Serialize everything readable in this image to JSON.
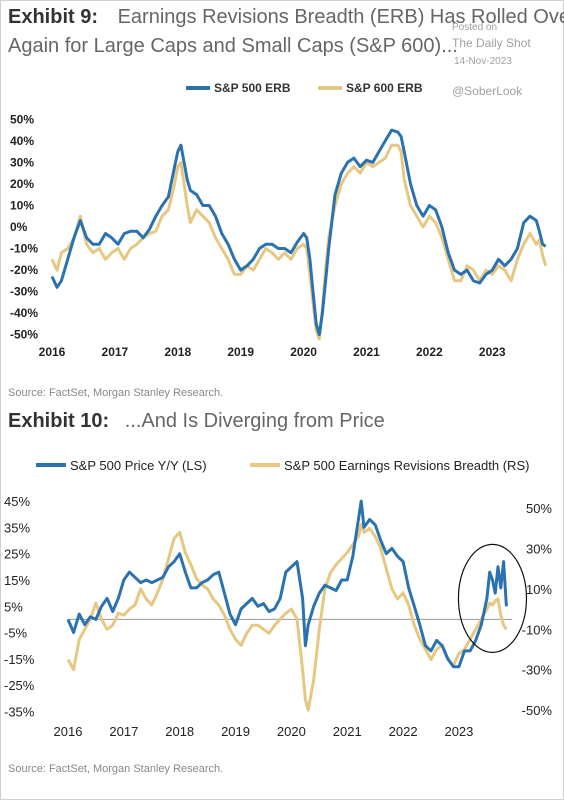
{
  "exhibit9": {
    "label": "Exhibit 9:",
    "title_line1": "Earnings Revisions Breadth (ERB) Has Rolled Over",
    "title_line2": "Again for Large Caps and Small Caps (S&P 600)...",
    "source": "Source: FactSet, Morgan Stanley Research."
  },
  "exhibit10": {
    "label": "Exhibit 10:",
    "title": "...And Is Diverging from Price",
    "source": "Source: FactSet, Morgan Stanley Research."
  },
  "watermark": {
    "posted_on": "Posted on",
    "site": "The Daily Shot",
    "date": "14-Nov-2023",
    "handle": "@SoberLook"
  },
  "colors": {
    "blue": "#2a72b0",
    "tan": "#e6c882",
    "zero_line": "#999999"
  },
  "chart_data": [
    {
      "type": "line",
      "title": "Earnings Revisions Breadth (ERB) Has Rolled Over Again for Large Caps and Small Caps (S&P 600)...",
      "xlim": [
        2016,
        2023.95
      ],
      "ylim": [
        -52,
        52
      ],
      "yticks": [
        50,
        40,
        30,
        20,
        10,
        0,
        -10,
        -20,
        -30,
        -40,
        -50
      ],
      "ytick_labels": [
        "50%",
        "40%",
        "30%",
        "20%",
        "10%",
        "0%",
        "-10%",
        "-20%",
        "-30%",
        "-40%",
        "-50%"
      ],
      "xticks": [
        2016,
        2017,
        2018,
        2019,
        2020,
        2021,
        2022,
        2023
      ],
      "xtick_labels": [
        "2016",
        "2017",
        "2018",
        "2019",
        "2020",
        "2021",
        "2022",
        "2023"
      ],
      "legend_position": "top-center",
      "series": [
        {
          "name": "S&P 500 ERB",
          "color": "#2a72b0",
          "x": [
            2016.0,
            2016.08,
            2016.15,
            2016.25,
            2016.35,
            2016.45,
            2016.55,
            2016.65,
            2016.75,
            2016.85,
            2016.95,
            2017.05,
            2017.15,
            2017.25,
            2017.35,
            2017.45,
            2017.55,
            2017.65,
            2017.75,
            2017.85,
            2017.95,
            2018.0,
            2018.05,
            2018.1,
            2018.15,
            2018.2,
            2018.3,
            2018.4,
            2018.5,
            2018.6,
            2018.7,
            2018.8,
            2018.9,
            2019.0,
            2019.1,
            2019.2,
            2019.3,
            2019.4,
            2019.5,
            2019.6,
            2019.7,
            2019.8,
            2019.9,
            2020.0,
            2020.05,
            2020.1,
            2020.15,
            2020.2,
            2020.25,
            2020.3,
            2020.35,
            2020.4,
            2020.5,
            2020.6,
            2020.7,
            2020.8,
            2020.9,
            2021.0,
            2021.1,
            2021.2,
            2021.3,
            2021.4,
            2021.5,
            2021.55,
            2021.6,
            2021.7,
            2021.8,
            2021.9,
            2022.0,
            2022.1,
            2022.2,
            2022.3,
            2022.4,
            2022.5,
            2022.6,
            2022.7,
            2022.8,
            2022.9,
            2023.0,
            2023.1,
            2023.2,
            2023.3,
            2023.4,
            2023.5,
            2023.6,
            2023.7,
            2023.75,
            2023.8,
            2023.85
          ],
          "values": [
            -23,
            -28,
            -25,
            -15,
            -5,
            3,
            -5,
            -8,
            -8,
            -3,
            -5,
            -8,
            -3,
            -2,
            -2,
            -5,
            -1,
            5,
            10,
            14,
            28,
            35,
            38,
            30,
            22,
            17,
            15,
            10,
            10,
            5,
            -3,
            -8,
            -15,
            -20,
            -18,
            -15,
            -10,
            -8,
            -8,
            -10,
            -10,
            -12,
            -7,
            -3,
            -5,
            -15,
            -30,
            -45,
            -50,
            -40,
            -25,
            -10,
            15,
            25,
            30,
            32,
            28,
            31,
            30,
            35,
            40,
            45,
            44,
            42,
            35,
            20,
            10,
            5,
            10,
            8,
            0,
            -12,
            -20,
            -22,
            -20,
            -25,
            -26,
            -22,
            -20,
            -15,
            -18,
            -15,
            -10,
            2,
            5,
            3,
            -2,
            -8,
            -9
          ]
        },
        {
          "name": "S&P 600 ERB",
          "color": "#e6c882",
          "x": [
            2016.0,
            2016.08,
            2016.15,
            2016.25,
            2016.35,
            2016.45,
            2016.55,
            2016.65,
            2016.75,
            2016.85,
            2016.95,
            2017.05,
            2017.15,
            2017.25,
            2017.35,
            2017.45,
            2017.55,
            2017.65,
            2017.75,
            2017.85,
            2017.95,
            2018.0,
            2018.05,
            2018.1,
            2018.15,
            2018.2,
            2018.3,
            2018.4,
            2018.5,
            2018.6,
            2018.7,
            2018.8,
            2018.9,
            2019.0,
            2019.1,
            2019.2,
            2019.3,
            2019.4,
            2019.5,
            2019.6,
            2019.7,
            2019.8,
            2019.9,
            2020.0,
            2020.05,
            2020.1,
            2020.15,
            2020.2,
            2020.25,
            2020.3,
            2020.35,
            2020.4,
            2020.5,
            2020.6,
            2020.7,
            2020.8,
            2020.9,
            2021.0,
            2021.1,
            2021.2,
            2021.3,
            2021.4,
            2021.5,
            2021.55,
            2021.6,
            2021.7,
            2021.8,
            2021.9,
            2022.0,
            2022.1,
            2022.2,
            2022.3,
            2022.4,
            2022.5,
            2022.6,
            2022.7,
            2022.8,
            2022.9,
            2023.0,
            2023.1,
            2023.2,
            2023.3,
            2023.4,
            2023.5,
            2023.6,
            2023.7,
            2023.75,
            2023.8,
            2023.85
          ],
          "values": [
            -15,
            -20,
            -12,
            -10,
            -5,
            5,
            -8,
            -12,
            -10,
            -15,
            -12,
            -10,
            -15,
            -10,
            -8,
            -5,
            -3,
            -2,
            5,
            8,
            20,
            28,
            30,
            20,
            10,
            2,
            8,
            5,
            2,
            -5,
            -10,
            -15,
            -22,
            -22,
            -18,
            -20,
            -15,
            -10,
            -12,
            -15,
            -12,
            -15,
            -10,
            -8,
            -10,
            -22,
            -35,
            -48,
            -52,
            -38,
            -20,
            -5,
            10,
            20,
            25,
            28,
            25,
            30,
            28,
            30,
            32,
            38,
            38,
            35,
            22,
            10,
            5,
            0,
            5,
            2,
            -5,
            -15,
            -25,
            -25,
            -18,
            -20,
            -25,
            -20,
            -22,
            -18,
            -20,
            -25,
            -15,
            -8,
            -3,
            -8,
            -6,
            -13,
            -18
          ]
        }
      ]
    },
    {
      "type": "line",
      "title": "...And Is Diverging from Price",
      "xlim": [
        2016,
        2023.95
      ],
      "y_left_lim": [
        -36,
        50
      ],
      "y_right_lim": [
        -52,
        60
      ],
      "yticks_left": [
        45,
        35,
        25,
        15,
        5,
        -5,
        -15,
        -25,
        -35
      ],
      "ytick_labels_left": [
        "45%",
        "35%",
        "25%",
        "15%",
        "5%",
        "-5%",
        "-15%",
        "-25%",
        "-35%"
      ],
      "yticks_right": [
        50,
        30,
        10,
        -10,
        -30,
        -50
      ],
      "ytick_labels_right": [
        "50%",
        "30%",
        "10%",
        "-10%",
        "-30%",
        "-50%"
      ],
      "xticks": [
        2016,
        2017,
        2018,
        2019,
        2020,
        2021,
        2022,
        2023
      ],
      "xtick_labels": [
        "2016",
        "2017",
        "2018",
        "2019",
        "2020",
        "2021",
        "2022",
        "2023"
      ],
      "legend_position": "top",
      "annotation": "circle highlighting 2023 divergence",
      "series": [
        {
          "name": "S&P 500 Price Y/Y (LS)",
          "color": "#2a72b0",
          "axis": "left",
          "x": [
            2016.0,
            2016.1,
            2016.2,
            2016.3,
            2016.4,
            2016.5,
            2016.6,
            2016.7,
            2016.8,
            2016.9,
            2017.0,
            2017.1,
            2017.2,
            2017.3,
            2017.4,
            2017.5,
            2017.6,
            2017.7,
            2017.8,
            2017.9,
            2018.0,
            2018.1,
            2018.2,
            2018.3,
            2018.4,
            2018.5,
            2018.6,
            2018.7,
            2018.8,
            2018.9,
            2019.0,
            2019.1,
            2019.2,
            2019.3,
            2019.4,
            2019.5,
            2019.6,
            2019.7,
            2019.8,
            2019.9,
            2020.0,
            2020.1,
            2020.2,
            2020.25,
            2020.3,
            2020.4,
            2020.5,
            2020.6,
            2020.7,
            2020.8,
            2020.9,
            2021.0,
            2021.1,
            2021.2,
            2021.25,
            2021.3,
            2021.4,
            2021.5,
            2021.6,
            2021.7,
            2021.8,
            2021.9,
            2022.0,
            2022.1,
            2022.2,
            2022.3,
            2022.4,
            2022.5,
            2022.6,
            2022.7,
            2022.8,
            2022.9,
            2023.0,
            2023.1,
            2023.2,
            2023.3,
            2023.4,
            2023.5,
            2023.55,
            2023.6,
            2023.65,
            2023.7,
            2023.75,
            2023.8,
            2023.85
          ],
          "values": [
            0,
            -5,
            2,
            -2,
            1,
            0,
            5,
            8,
            3,
            8,
            15,
            18,
            16,
            14,
            15,
            14,
            15,
            16,
            20,
            22,
            25,
            18,
            12,
            12,
            14,
            15,
            17,
            18,
            10,
            2,
            -2,
            4,
            6,
            8,
            5,
            6,
            3,
            4,
            8,
            18,
            20,
            22,
            8,
            -10,
            -2,
            5,
            10,
            13,
            12,
            11,
            15,
            15,
            24,
            38,
            45,
            35,
            38,
            36,
            30,
            25,
            27,
            24,
            22,
            12,
            5,
            -2,
            -10,
            -12,
            -8,
            -10,
            -15,
            -18,
            -18,
            -12,
            -12,
            -8,
            -2,
            8,
            18,
            15,
            10,
            20,
            12,
            22,
            5
          ]
        },
        {
          "name": "S&P 500 Earnings Revisions Breadth (RS)",
          "color": "#e6c882",
          "axis": "right",
          "x": [
            2016.0,
            2016.1,
            2016.2,
            2016.3,
            2016.4,
            2016.5,
            2016.6,
            2016.7,
            2016.8,
            2016.9,
            2017.0,
            2017.1,
            2017.2,
            2017.3,
            2017.4,
            2017.5,
            2017.6,
            2017.7,
            2017.8,
            2017.9,
            2018.0,
            2018.1,
            2018.2,
            2018.3,
            2018.4,
            2018.5,
            2018.6,
            2018.7,
            2018.8,
            2018.9,
            2019.0,
            2019.1,
            2019.2,
            2019.3,
            2019.4,
            2019.5,
            2019.6,
            2019.7,
            2019.8,
            2019.9,
            2020.0,
            2020.1,
            2020.2,
            2020.25,
            2020.3,
            2020.4,
            2020.5,
            2020.6,
            2020.7,
            2020.8,
            2020.9,
            2021.0,
            2021.1,
            2021.2,
            2021.25,
            2021.3,
            2021.4,
            2021.5,
            2021.6,
            2021.7,
            2021.8,
            2021.9,
            2022.0,
            2022.1,
            2022.2,
            2022.3,
            2022.4,
            2022.5,
            2022.6,
            2022.7,
            2022.8,
            2022.9,
            2023.0,
            2023.1,
            2023.2,
            2023.3,
            2023.4,
            2023.5,
            2023.55,
            2023.6,
            2023.65,
            2023.7,
            2023.75,
            2023.8,
            2023.85
          ],
          "values": [
            -25,
            -30,
            -15,
            -10,
            -5,
            3,
            -5,
            -10,
            -8,
            -2,
            -3,
            0,
            2,
            10,
            5,
            2,
            8,
            15,
            25,
            35,
            38,
            28,
            22,
            15,
            12,
            10,
            5,
            2,
            -3,
            -10,
            -15,
            -18,
            -12,
            -8,
            -8,
            -10,
            -12,
            -8,
            -5,
            -2,
            0,
            -5,
            -30,
            -45,
            -50,
            -35,
            -10,
            10,
            18,
            22,
            25,
            28,
            32,
            36,
            42,
            38,
            40,
            36,
            30,
            20,
            10,
            5,
            8,
            2,
            -8,
            -15,
            -20,
            -25,
            -20,
            -18,
            -25,
            -28,
            -22,
            -20,
            -15,
            -10,
            -5,
            0,
            3,
            2,
            4,
            5,
            -3,
            -8,
            -10
          ]
        }
      ]
    }
  ]
}
